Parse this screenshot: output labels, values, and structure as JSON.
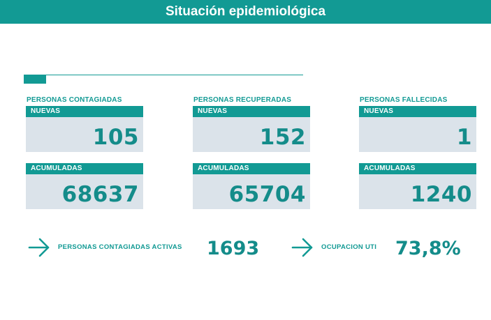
{
  "header": {
    "title": "Situación epidemiológica"
  },
  "columns": [
    {
      "title": "PERSONAS CONTAGIADAS",
      "nuevas_label": "NUEVAS",
      "nuevas": "105",
      "acumuladas_label": "ACUMULADAS",
      "acumuladas": "68637"
    },
    {
      "title": "PERSONAS RECUPERADAS",
      "nuevas_label": "NUEVAS",
      "nuevas": "152",
      "acumuladas_label": "ACUMULADAS",
      "acumuladas": "65704"
    },
    {
      "title": "PERSONAS FALLECIDAS",
      "nuevas_label": "NUEVAS",
      "nuevas": "1",
      "acumuladas_label": "ACUMULADAS",
      "acumuladas": "1240"
    }
  ],
  "summary": [
    {
      "label": "PERSONAS CONTAGIADAS ACTIVAS",
      "value": "1693",
      "icon": "arrow-right-icon"
    },
    {
      "label": "OCUPACION UTI",
      "value": "73,8%",
      "icon": "arrow-right-icon"
    }
  ],
  "colors": {
    "accent": "#129a94",
    "value": "#148c8a",
    "card_bg": "#dbe3ea"
  }
}
